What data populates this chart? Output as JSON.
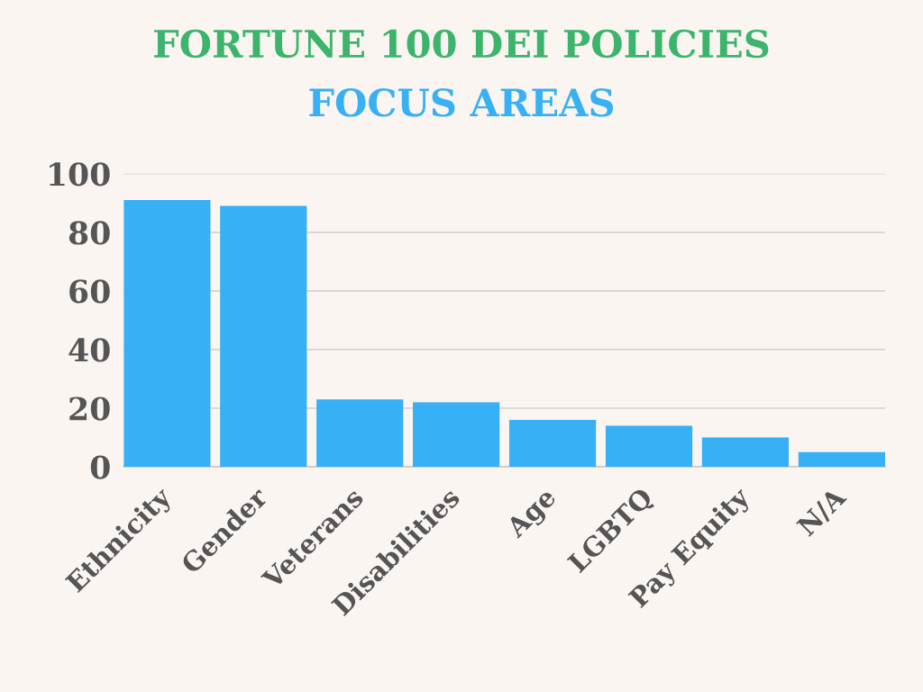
{
  "chart_data": {
    "type": "bar",
    "title": "FORTUNE 100 DEI POLICIES",
    "subtitle": "FOCUS AREAS",
    "categories": [
      "Ethnicity",
      "Gender",
      "Veterans",
      "Disabilities",
      "Age",
      "LGBTQ",
      "Pay Equity",
      "N/A"
    ],
    "values": [
      91,
      89,
      23,
      22,
      16,
      14,
      10,
      5
    ],
    "color": "#38b0f5",
    "ylim": [
      0,
      100
    ],
    "yticks": [
      0,
      20,
      40,
      60,
      80,
      100
    ],
    "grid": "y"
  }
}
